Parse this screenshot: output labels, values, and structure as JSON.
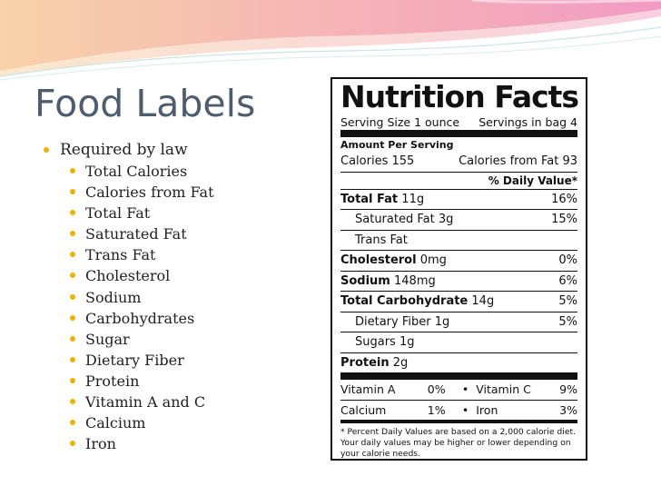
{
  "slide": {
    "title": "Food Labels",
    "bullet_main": "Required by law",
    "bullets": [
      "Total Calories",
      "Calories from Fat",
      "Total Fat",
      "Saturated Fat",
      "Trans Fat",
      "Cholesterol",
      "Sodium",
      "Carbohydrates",
      "Sugar",
      "Dietary Fiber",
      "Protein",
      "Vitamin A and C",
      "Calcium",
      "Iron"
    ]
  },
  "label": {
    "title": "Nutrition Facts",
    "serving_size": "Serving Size 1 ounce",
    "servings": "Servings in bag 4",
    "amount_per_serving": "Amount Per Serving",
    "calories": "Calories 155",
    "calories_fat": "Calories from Fat 93",
    "daily_value_header": "% Daily Value*",
    "rows": [
      {
        "name": "Total Fat",
        "amount": "11g",
        "dv": "16%"
      },
      {
        "name": "Saturated Fat",
        "amount": "3g",
        "dv": "15%"
      },
      {
        "name": "Trans Fat",
        "amount": "",
        "dv": ""
      },
      {
        "name": "Cholesterol",
        "amount": "0mg",
        "dv": "0%"
      },
      {
        "name": "Sodium",
        "amount": "148mg",
        "dv": "6%"
      },
      {
        "name": "Total Carbohydrate",
        "amount": "14g",
        "dv": "5%"
      },
      {
        "name": "Dietary Fiber",
        "amount": "1g",
        "dv": "5%"
      },
      {
        "name": "Sugars",
        "amount": "1g",
        "dv": ""
      },
      {
        "name": "Protein",
        "amount": "2g",
        "dv": ""
      }
    ],
    "vitamins": [
      {
        "name1": "Vitamin A",
        "v1": "0%",
        "name2": "Vitamin C",
        "v2": "9%"
      },
      {
        "name1": "Calcium",
        "v1": "1%",
        "name2": "Iron",
        "v2": "3%"
      }
    ],
    "bullet_glyph": "•",
    "footnote": "* Percent Daily Values are based on a 2,000 calorie diet. Your daily values may be higher or lower depending on your calorie needs."
  },
  "colors": {
    "title": "#4d5d6e",
    "bullet": "#f0b000",
    "banner_pink": "#f3a7c0",
    "banner_peach": "#f8c8a6"
  }
}
